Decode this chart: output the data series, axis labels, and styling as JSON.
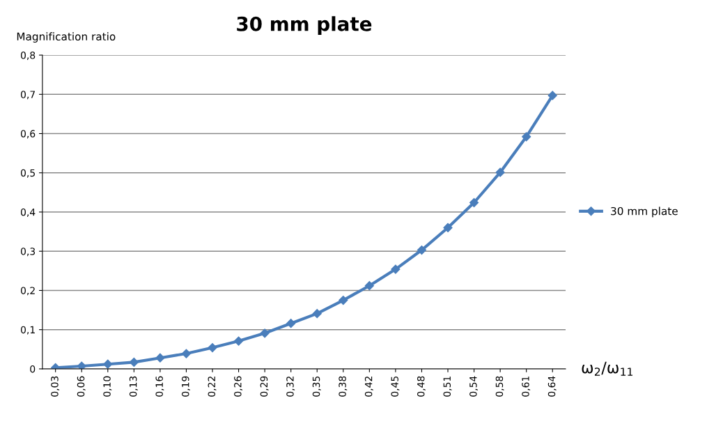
{
  "chart_data": {
    "type": "line",
    "title": "30 mm plate",
    "ylabel": "Magnification ratio",
    "xlabel": "ω$_{2}$/ω$_{11}$",
    "categories": [
      "0,03",
      "0,06",
      "0,10",
      "0,13",
      "0,16",
      "0,19",
      "0,22",
      "0,26",
      "0,29",
      "0,32",
      "0,35",
      "0,38",
      "0,42",
      "0,45",
      "0,48",
      "0,51",
      "0,54",
      "0,58",
      "0,61",
      "0,64"
    ],
    "series": [
      {
        "name": "30 mm plate",
        "color": "#4a7ebb",
        "values": [
          0.003,
          0.007,
          0.012,
          0.017,
          0.028,
          0.039,
          0.054,
          0.071,
          0.091,
          0.116,
          0.141,
          0.175,
          0.212,
          0.254,
          0.303,
          0.36,
          0.424,
          0.501,
          0.592,
          0.697
        ]
      }
    ],
    "ylim": [
      0,
      0.8
    ],
    "yticks": [
      {
        "value": 0,
        "label": "0"
      },
      {
        "value": 0.1,
        "label": "0,1"
      },
      {
        "value": 0.2,
        "label": "0,2"
      },
      {
        "value": 0.3,
        "label": "0,3"
      },
      {
        "value": 0.4,
        "label": "0,4"
      },
      {
        "value": 0.5,
        "label": "0,5"
      },
      {
        "value": 0.6,
        "label": "0,6"
      },
      {
        "value": 0.7,
        "label": "0,7"
      },
      {
        "value": 0.8,
        "label": "0,8"
      }
    ],
    "grid": "y",
    "legend": "right",
    "marker": "diamond",
    "line_style": "solid"
  }
}
